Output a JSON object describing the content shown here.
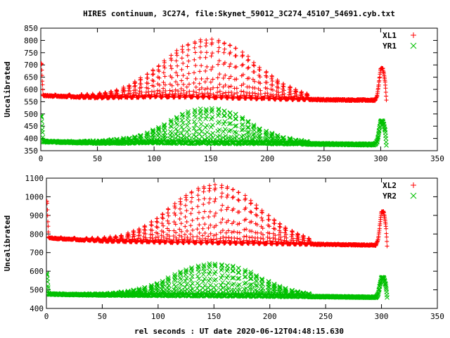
{
  "title": "HIRES continuum, 3C274, file:Skynet_59012_3C274_45107_54691.cyb.txt",
  "xlabel": "rel seconds : UT date 2020-06-12T04:48:15.630",
  "colors": {
    "red": "#ff0000",
    "green": "#00c000"
  },
  "chart_data": [
    {
      "type": "scatter",
      "ylabel": "Uncalibrated",
      "xlim": [
        0,
        350
      ],
      "ylim": [
        350,
        850
      ],
      "xticks": [
        0,
        50,
        100,
        150,
        200,
        250,
        300,
        350
      ],
      "yticks": [
        350,
        400,
        450,
        500,
        550,
        600,
        650,
        700,
        750,
        800,
        850
      ],
      "legend_position": "top-right",
      "series": [
        {
          "name": "XL1",
          "marker": "plus",
          "scan_start": 0,
          "scan_end": 305,
          "baseline": [
            [
              0,
              705
            ],
            [
              0.6,
              705
            ],
            [
              1.2,
              645
            ],
            [
              2,
              575
            ],
            [
              10,
              573
            ],
            [
              50,
              566
            ],
            [
              100,
              570
            ],
            [
              150,
              568
            ],
            [
              200,
              562
            ],
            [
              250,
              558
            ],
            [
              295,
              556
            ],
            [
              297,
              576
            ],
            [
              300,
              685
            ],
            [
              302,
              685
            ],
            [
              304,
              628
            ],
            [
              305,
              555
            ]
          ],
          "peak_x": [
            13,
            25,
            36,
            41,
            46,
            52,
            57,
            62,
            67,
            73,
            78,
            83,
            88,
            94,
            99,
            104,
            109,
            115,
            120,
            125,
            130,
            136,
            141,
            146,
            151,
            157,
            162,
            167,
            172,
            178,
            183,
            188,
            193,
            199,
            204,
            209,
            214,
            220,
            225,
            230,
            235
          ],
          "peak_amp": [
            6,
            8,
            10,
            12,
            14,
            18,
            22,
            26,
            30,
            40,
            50,
            62,
            76,
            92,
            110,
            128,
            148,
            168,
            188,
            205,
            218,
            228,
            234,
            236,
            236,
            234,
            228,
            218,
            205,
            188,
            168,
            148,
            128,
            110,
            92,
            76,
            62,
            50,
            40,
            30,
            22
          ]
        },
        {
          "name": "YR1",
          "marker": "cross",
          "scan_start": 0,
          "scan_end": 305,
          "baseline": [
            [
              0,
              490
            ],
            [
              0.6,
              490
            ],
            [
              1.2,
              445
            ],
            [
              2,
              388
            ],
            [
              10,
              386
            ],
            [
              50,
              382
            ],
            [
              100,
              383
            ],
            [
              150,
              381
            ],
            [
              200,
              380
            ],
            [
              250,
              377
            ],
            [
              295,
              375
            ],
            [
              297,
              388
            ],
            [
              300,
              470
            ],
            [
              302,
              470
            ],
            [
              304,
              430
            ],
            [
              305,
              372
            ]
          ],
          "peak_x": [
            13,
            25,
            36,
            41,
            46,
            52,
            57,
            62,
            67,
            73,
            78,
            83,
            88,
            94,
            99,
            104,
            109,
            115,
            120,
            125,
            130,
            136,
            141,
            146,
            151,
            157,
            162,
            167,
            172,
            178,
            183,
            188,
            193,
            199,
            204,
            209,
            214,
            220,
            225,
            230,
            235
          ],
          "peak_amp": [
            2,
            3,
            4,
            5,
            6,
            7,
            9,
            11,
            13,
            16,
            20,
            26,
            32,
            40,
            50,
            62,
            76,
            92,
            106,
            118,
            128,
            134,
            138,
            140,
            140,
            138,
            134,
            128,
            118,
            106,
            92,
            76,
            62,
            50,
            40,
            32,
            26,
            20,
            16,
            12,
            9
          ]
        }
      ]
    },
    {
      "type": "scatter",
      "ylabel": "Uncalibrated",
      "xlim": [
        0,
        350
      ],
      "ylim": [
        400,
        1100
      ],
      "xticks": [
        0,
        50,
        100,
        150,
        200,
        250,
        300,
        350
      ],
      "yticks": [
        400,
        500,
        600,
        700,
        800,
        900,
        1000,
        1100
      ],
      "legend_position": "top-right",
      "series": [
        {
          "name": "XL2",
          "marker": "plus",
          "scan_start": 0,
          "scan_end": 305,
          "baseline": [
            [
              0,
              975
            ],
            [
              0.6,
              975
            ],
            [
              1.2,
              880
            ],
            [
              2,
              780
            ],
            [
              10,
              775
            ],
            [
              50,
              762
            ],
            [
              100,
              756
            ],
            [
              150,
              752
            ],
            [
              200,
              748
            ],
            [
              250,
              744
            ],
            [
              295,
              740
            ],
            [
              297,
              770
            ],
            [
              300,
              920
            ],
            [
              302,
              920
            ],
            [
              304,
              840
            ],
            [
              305,
              737
            ]
          ],
          "peak_x": [
            13,
            25,
            36,
            41,
            46,
            52,
            57,
            62,
            67,
            73,
            78,
            83,
            88,
            94,
            99,
            104,
            109,
            115,
            120,
            125,
            130,
            136,
            141,
            146,
            151,
            157,
            162,
            167,
            172,
            178,
            183,
            188,
            193,
            199,
            204,
            209,
            214,
            220,
            225,
            230,
            235
          ],
          "peak_amp": [
            6,
            8,
            10,
            12,
            14,
            18,
            22,
            28,
            34,
            44,
            56,
            70,
            88,
            108,
            130,
            154,
            180,
            206,
            232,
            256,
            276,
            292,
            304,
            310,
            312,
            310,
            304,
            292,
            276,
            256,
            232,
            206,
            180,
            154,
            130,
            108,
            88,
            70,
            56,
            44,
            34
          ]
        },
        {
          "name": "YR2",
          "marker": "cross",
          "scan_start": 0,
          "scan_end": 305,
          "baseline": [
            [
              0,
              585
            ],
            [
              0.6,
              585
            ],
            [
              1.2,
              530
            ],
            [
              2,
              478
            ],
            [
              10,
              476
            ],
            [
              50,
              472
            ],
            [
              100,
              470
            ],
            [
              150,
              468
            ],
            [
              200,
              466
            ],
            [
              250,
              463
            ],
            [
              295,
              460
            ],
            [
              297,
              478
            ],
            [
              300,
              565
            ],
            [
              302,
              565
            ],
            [
              304,
              520
            ],
            [
              305,
              458
            ]
          ],
          "peak_x": [
            13,
            25,
            36,
            41,
            46,
            52,
            57,
            62,
            67,
            73,
            78,
            83,
            88,
            94,
            99,
            104,
            109,
            115,
            120,
            125,
            130,
            136,
            141,
            146,
            151,
            157,
            162,
            167,
            172,
            178,
            183,
            188,
            193,
            199,
            204,
            209,
            214,
            220,
            225,
            230,
            235
          ],
          "peak_amp": [
            2,
            3,
            4,
            5,
            6,
            8,
            10,
            13,
            16,
            20,
            26,
            33,
            42,
            52,
            64,
            78,
            94,
            110,
            126,
            140,
            152,
            160,
            166,
            170,
            172,
            170,
            166,
            160,
            152,
            140,
            126,
            110,
            94,
            78,
            64,
            52,
            42,
            33,
            26,
            20,
            15
          ]
        }
      ]
    }
  ]
}
